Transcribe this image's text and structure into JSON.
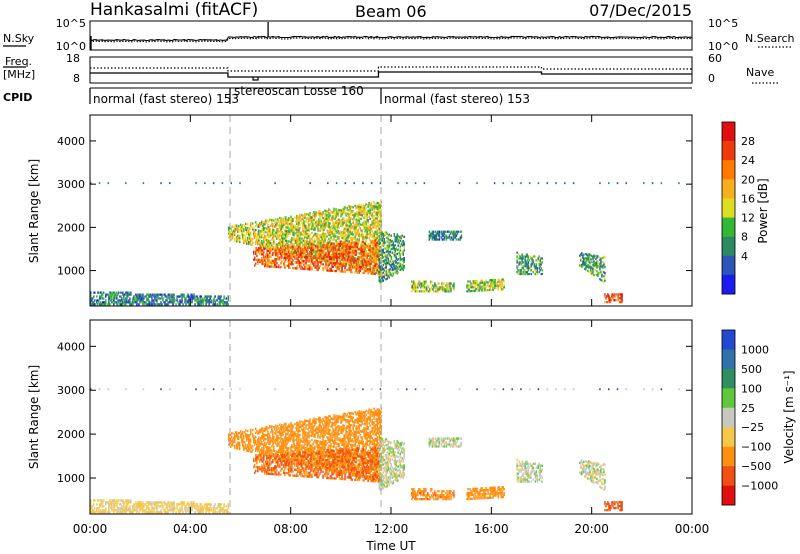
{
  "header": {
    "station": "Hankasalmi (fitACF)",
    "beam": "Beam 06",
    "date": "07/Dec/2015"
  },
  "noise_panel": {
    "left_label": "N.Sky",
    "left_ticks": [
      "10^5",
      "10^0"
    ],
    "right_label": "N.Search",
    "right_ticks": [
      "10^5",
      "10^0"
    ]
  },
  "freq_panel": {
    "left_label_line1": "Freq.",
    "left_label_line2": "[MHz]",
    "left_ticks": [
      "18",
      "8"
    ],
    "right_label": "Nave",
    "right_ticks": [
      "60",
      "0"
    ]
  },
  "cpid_panel": {
    "label": "CPID",
    "segments": [
      {
        "text": "normal (fast stereo) 153",
        "start_hour": 0,
        "end_hour": 5.5
      },
      {
        "text": "stereoscan Losse 160",
        "start_hour": 5.5,
        "end_hour": 11.5
      },
      {
        "text": "normal (fast stereo) 153",
        "start_hour": 11.5,
        "end_hour": 24
      }
    ]
  },
  "power_panel": {
    "ylabel": "Slant Range [km]",
    "colorbar_label": "Power [dB]",
    "colorbar_ticks": [
      "28",
      "24",
      "20",
      "16",
      "12",
      "8",
      "4"
    ],
    "colors": [
      "#1c1cf0",
      "#2b55b8",
      "#2c8a62",
      "#33b833",
      "#dddd22",
      "#f7b01c",
      "#ff7a00",
      "#f03a0c",
      "#e01010"
    ]
  },
  "velocity_panel": {
    "ylabel": "Slant Range [km]",
    "colorbar_label": "Velocity [m s⁻¹]",
    "colorbar_ticks": [
      "1000",
      "500",
      "100",
      "25",
      "−25",
      "−100",
      "−500",
      "−1000"
    ],
    "colors": [
      "#2448d0",
      "#2d72a8",
      "#2f8f60",
      "#5fc83a",
      "#c8c8c0",
      "#f5c84a",
      "#ff9010",
      "#f05010",
      "#e01010"
    ]
  },
  "x_axis": {
    "label": "Time UT",
    "tick_labels": [
      "00:00",
      "04:00",
      "08:00",
      "12:00",
      "16:00",
      "20:00",
      "00:00"
    ]
  },
  "y_axis_ticks": [
    "1000",
    "2000",
    "3000",
    "4000"
  ],
  "chart_data": {
    "type": "heatmap",
    "title": "Hankasalmi (fitACF) Beam 06 07/Dec/2015",
    "xlabel": "Time UT",
    "ylabel": "Slant Range [km]",
    "xlim_hours": [
      0,
      24
    ],
    "ylim_km": [
      180,
      4600
    ],
    "gate_step_km": 45,
    "mode_change_hours": [
      5.5,
      11.5
    ],
    "power_colorbar": {
      "label": "Power [dB]",
      "ticks": [
        4,
        8,
        12,
        16,
        20,
        24,
        28
      ]
    },
    "velocity_colorbar": {
      "label": "Velocity [m s⁻¹]",
      "ticks": [
        -1000,
        -500,
        -100,
        -25,
        25,
        100,
        500,
        1000
      ]
    },
    "echo_regions": [
      {
        "t0": 5.5,
        "t1": 11.6,
        "r_bottom_start": 1700,
        "r_bottom_end": 900,
        "r_top_start": 2000,
        "r_top_end": 2600,
        "power_db": 16,
        "velocity": -300
      },
      {
        "t0": 6.5,
        "t1": 11.5,
        "r_bottom_start": 1100,
        "r_bottom_end": 900,
        "r_top_start": 1500,
        "r_top_end": 1700,
        "power_db": 24,
        "velocity": -500
      },
      {
        "t0": 0.0,
        "t1": 5.5,
        "r_bottom_start": 200,
        "r_bottom_end": 200,
        "r_top_start": 500,
        "r_top_end": 400,
        "power_db": 8,
        "velocity": -50
      },
      {
        "t0": 11.5,
        "t1": 12.5,
        "r_bottom_start": 700,
        "r_bottom_end": 1000,
        "r_top_start": 1900,
        "r_top_end": 1800,
        "power_db": 10,
        "velocity": 0
      },
      {
        "t0": 13.5,
        "t1": 14.8,
        "r_bottom_start": 1700,
        "r_bottom_end": 1700,
        "r_top_start": 1900,
        "r_top_end": 1900,
        "power_db": 8,
        "velocity": 0
      },
      {
        "t0": 12.8,
        "t1": 14.5,
        "r_bottom_start": 500,
        "r_bottom_end": 500,
        "r_top_start": 750,
        "r_top_end": 700,
        "power_db": 14,
        "velocity": -400
      },
      {
        "t0": 15.0,
        "t1": 16.5,
        "r_bottom_start": 500,
        "r_bottom_end": 550,
        "r_top_start": 750,
        "r_top_end": 800,
        "power_db": 14,
        "velocity": -300
      },
      {
        "t0": 17.0,
        "t1": 18.0,
        "r_bottom_start": 900,
        "r_bottom_end": 900,
        "r_top_start": 1400,
        "r_top_end": 1300,
        "power_db": 10,
        "velocity": 0
      },
      {
        "t0": 19.5,
        "t1": 20.5,
        "r_bottom_start": 1100,
        "r_bottom_end": 700,
        "r_top_start": 1400,
        "r_top_end": 1300,
        "power_db": 10,
        "velocity": 0
      },
      {
        "t0": 20.5,
        "t1": 21.2,
        "r_bottom_start": 250,
        "r_bottom_end": 250,
        "r_top_start": 450,
        "r_top_end": 450,
        "power_db": 26,
        "velocity": -800
      }
    ],
    "range_line_km": 3000
  }
}
